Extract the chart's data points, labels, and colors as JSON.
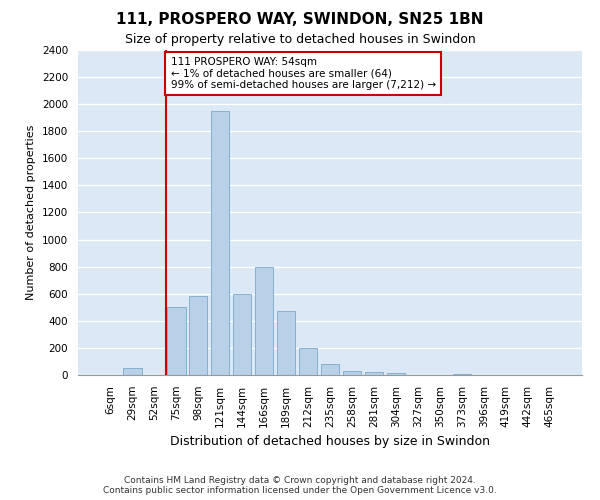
{
  "title_line1": "111, PROSPERO WAY, SWINDON, SN25 1BN",
  "title_line2": "Size of property relative to detached houses in Swindon",
  "xlabel": "Distribution of detached houses by size in Swindon",
  "ylabel": "Number of detached properties",
  "footer_line1": "Contains HM Land Registry data © Crown copyright and database right 2024.",
  "footer_line2": "Contains public sector information licensed under the Open Government Licence v3.0.",
  "categories": [
    "6sqm",
    "29sqm",
    "52sqm",
    "75sqm",
    "98sqm",
    "121sqm",
    "144sqm",
    "166sqm",
    "189sqm",
    "212sqm",
    "235sqm",
    "258sqm",
    "281sqm",
    "304sqm",
    "327sqm",
    "350sqm",
    "373sqm",
    "396sqm",
    "419sqm",
    "442sqm",
    "465sqm"
  ],
  "values": [
    0,
    50,
    0,
    500,
    580,
    1950,
    600,
    800,
    470,
    200,
    80,
    30,
    20,
    15,
    0,
    0,
    10,
    0,
    0,
    0,
    0
  ],
  "bar_color": "#b8d0e8",
  "bar_edge_color": "#7aaac8",
  "background_color": "#dce8f5",
  "grid_color": "#ffffff",
  "annotation_line1": "111 PROSPERO WAY: 54sqm",
  "annotation_line2": "← 1% of detached houses are smaller (64)",
  "annotation_line3": "99% of semi-detached houses are larger (7,212) →",
  "annotation_box_facecolor": "#ffffff",
  "annotation_box_edgecolor": "#cc0000",
  "redline_color": "#cc0000",
  "redline_x": 2.55,
  "ylim": [
    0,
    2400
  ],
  "yticks": [
    0,
    200,
    400,
    600,
    800,
    1000,
    1200,
    1400,
    1600,
    1800,
    2000,
    2200,
    2400
  ],
  "fig_facecolor": "#ffffff",
  "title1_fontsize": 11,
  "title2_fontsize": 9,
  "ylabel_fontsize": 8,
  "xlabel_fontsize": 9,
  "footer_fontsize": 6.5,
  "tick_fontsize": 7.5,
  "annotation_fontsize": 7.5
}
